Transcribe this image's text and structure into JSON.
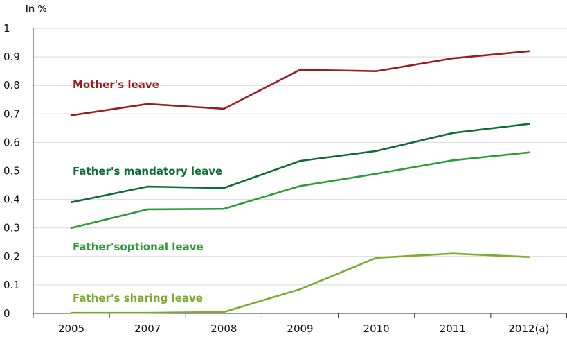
{
  "chart_data": {
    "type": "line",
    "unit_label": "In %",
    "categories": [
      "2005",
      "2007",
      "2008",
      "2009",
      "2010",
      "2011",
      "2012(a)"
    ],
    "y_ticks": [
      "0",
      "0.1",
      "0.2",
      "0.3",
      "0.4",
      "0.5",
      "0.6",
      "0.7",
      "0.8",
      "0.9",
      "1"
    ],
    "ylim": [
      0,
      1
    ],
    "grid": true,
    "series": [
      {
        "name": "Mother's leave",
        "color": "#9b1c1f",
        "values": [
          0.695,
          0.735,
          0.718,
          0.855,
          0.85,
          0.895,
          0.92
        ]
      },
      {
        "name": "Father's mandatory leave",
        "color": "#0e6b35",
        "values": [
          0.39,
          0.445,
          0.44,
          0.535,
          0.57,
          0.633,
          0.665
        ]
      },
      {
        "name": "Father'soptional leave",
        "color": "#2e9a3a",
        "values": [
          0.3,
          0.365,
          0.367,
          0.447,
          0.49,
          0.537,
          0.565
        ]
      },
      {
        "name": "Father's sharing leave",
        "color": "#7aab2a",
        "values": [
          0.002,
          0.002,
          0.005,
          0.085,
          0.195,
          0.21,
          0.198
        ]
      }
    ]
  }
}
